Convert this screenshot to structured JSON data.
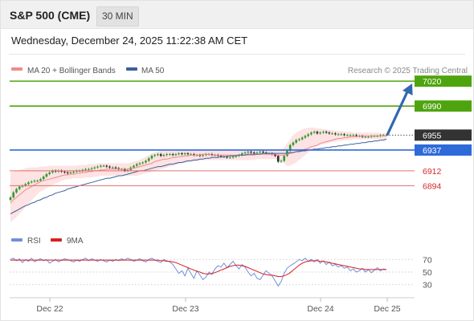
{
  "header": {
    "title": "S&P 500 (CME)",
    "interval": "30 MIN",
    "datetime": "Wednesday, December 24, 2025 11:22:38 AM CET"
  },
  "legend": {
    "ma20": "MA 20 + Bollinger Bands",
    "ma50": "MA 50",
    "copyright": "Research © 2025 Trading Central",
    "rsi": "RSI",
    "rsi_ma": "9MA"
  },
  "colors": {
    "up": "#2c9a2c",
    "down": "#2b2b2b",
    "ma20": "#f08a8a",
    "band_fill": "#fde3e3",
    "ma50": "#3b5fa0",
    "resistance": "#4ea40e",
    "support": "#e07070",
    "current": "#333333",
    "pivot": "#2f6ad9",
    "arrow": "#3168b0",
    "rsi": "#6f90dc",
    "rsi_ma": "#d81f1f",
    "grid": "#dddddd"
  },
  "chart_data": [
    {
      "type": "candlestick",
      "title": "S&P 500 (CME)",
      "interval": "30 MIN",
      "x_ticks": [
        "Dec 22",
        "Dec 23",
        "Dec 24",
        "Dec 25"
      ],
      "y_range": [
        6848,
        7024
      ],
      "levels": [
        {
          "value": 7020,
          "label": "7020",
          "kind": "resistance"
        },
        {
          "value": 6990,
          "label": "6990",
          "kind": "resistance"
        },
        {
          "value": 6955,
          "label": "6955",
          "kind": "current"
        },
        {
          "value": 6937,
          "label": "6937",
          "kind": "pivot"
        },
        {
          "value": 6912,
          "label": "6912",
          "kind": "support"
        },
        {
          "value": 6894,
          "label": "6894",
          "kind": "support"
        }
      ],
      "target_arrow": {
        "from_value": 6955,
        "to_value": 7020,
        "direction": "up"
      },
      "close": [
        6880,
        6886,
        6890,
        6893,
        6894,
        6896,
        6898,
        6899,
        6900,
        6900,
        6902,
        6905,
        6908,
        6910,
        6912,
        6911,
        6912,
        6911,
        6910,
        6909,
        6910,
        6911,
        6912,
        6912,
        6913,
        6914,
        6914,
        6915,
        6916,
        6917,
        6918,
        6918,
        6917,
        6916,
        6916,
        6915,
        6914,
        6914,
        6912,
        6913,
        6916,
        6918,
        6920,
        6921,
        6922,
        6924,
        6927,
        6930,
        6931,
        6932,
        6930,
        6931,
        6932,
        6932,
        6931,
        6932,
        6933,
        6932,
        6933,
        6932,
        6932,
        6931,
        6931,
        6930,
        6931,
        6932,
        6932,
        6931,
        6931,
        6930,
        6929,
        6929,
        6928,
        6928,
        6929,
        6930,
        6931,
        6933,
        6934,
        6935,
        6934,
        6933,
        6934,
        6935,
        6934,
        6933,
        6933,
        6932,
        6930,
        6923,
        6924,
        6930,
        6936,
        6943,
        6946,
        6949,
        6950,
        6952,
        6954,
        6956,
        6958,
        6959,
        6957,
        6958,
        6959,
        6958,
        6957,
        6957,
        6956,
        6956,
        6956,
        6955,
        6955,
        6955,
        6955,
        6954,
        6954,
        6953,
        6953,
        6953,
        6954,
        6954,
        6954,
        6955,
        6955,
        6955
      ],
      "ma20": [
        6873,
        6877,
        6880,
        6883,
        6886,
        6889,
        6891,
        6893,
        6895,
        6897,
        6899,
        6900,
        6901,
        6902,
        6903,
        6904,
        6905,
        6906,
        6907,
        6907,
        6908,
        6908,
        6909,
        6909,
        6910,
        6910,
        6911,
        6911,
        6912,
        6912,
        6913,
        6913,
        6914,
        6914,
        6914,
        6914,
        6914,
        6914,
        6914,
        6914,
        6915,
        6915,
        6916,
        6917,
        6918,
        6919,
        6920,
        6921,
        6923,
        6924,
        6925,
        6926,
        6926,
        6927,
        6928,
        6928,
        6929,
        6929,
        6930,
        6930,
        6931,
        6931,
        6931,
        6931,
        6932,
        6932,
        6932,
        6931,
        6931,
        6931,
        6931,
        6931,
        6931,
        6931,
        6931,
        6931,
        6931,
        6931,
        6931,
        6931,
        6931,
        6931,
        6932,
        6932,
        6932,
        6932,
        6932,
        6932,
        6932,
        6931,
        6931,
        6931,
        6932,
        6933,
        6934,
        6935,
        6936,
        6937,
        6938,
        6939,
        6941,
        6942,
        6943,
        6945,
        6946,
        6947,
        6948,
        6949,
        6950,
        6951,
        6951,
        6952,
        6952,
        6953,
        6953,
        6953,
        6954,
        6954,
        6954,
        6954,
        6954,
        6954,
        6954,
        6954,
        6954,
        6954
      ],
      "band_upper": [
        6910,
        6911,
        6912,
        6913,
        6914,
        6915,
        6916,
        6916,
        6916,
        6916,
        6917,
        6917,
        6917,
        6918,
        6918,
        6918,
        6918,
        6918,
        6918,
        6918,
        6918,
        6918,
        6918,
        6919,
        6919,
        6919,
        6920,
        6920,
        6920,
        6921,
        6921,
        6921,
        6921,
        6921,
        6921,
        6921,
        6921,
        6921,
        6921,
        6921,
        6922,
        6923,
        6924,
        6925,
        6927,
        6929,
        6931,
        6933,
        6934,
        6935,
        6936,
        6936,
        6936,
        6936,
        6936,
        6936,
        6937,
        6937,
        6937,
        6937,
        6937,
        6937,
        6937,
        6937,
        6937,
        6937,
        6937,
        6937,
        6937,
        6937,
        6937,
        6937,
        6937,
        6937,
        6937,
        6937,
        6937,
        6937,
        6937,
        6937,
        6937,
        6937,
        6937,
        6937,
        6937,
        6937,
        6937,
        6937,
        6937,
        6937,
        6937,
        6940,
        6945,
        6950,
        6955,
        6958,
        6960,
        6962,
        6963,
        6964,
        6964,
        6964,
        6963,
        6963,
        6962,
        6962,
        6961,
        6961,
        6960,
        6960,
        6960,
        6959,
        6959,
        6959,
        6958,
        6958,
        6958,
        6958,
        6958,
        6958,
        6958,
        6958,
        6958,
        6957,
        6957,
        6957
      ],
      "band_lower": [
        6850,
        6853,
        6856,
        6860,
        6864,
        6868,
        6872,
        6876,
        6880,
        6884,
        6887,
        6889,
        6891,
        6893,
        6895,
        6897,
        6898,
        6900,
        6901,
        6902,
        6902,
        6903,
        6903,
        6903,
        6903,
        6904,
        6904,
        6904,
        6905,
        6905,
        6906,
        6906,
        6906,
        6906,
        6906,
        6906,
        6906,
        6906,
        6906,
        6906,
        6906,
        6906,
        6906,
        6907,
        6908,
        6909,
        6910,
        6911,
        6912,
        6913,
        6914,
        6915,
        6916,
        6917,
        6918,
        6919,
        6920,
        6921,
        6922,
        6922,
        6923,
        6923,
        6924,
        6924,
        6925,
        6925,
        6925,
        6925,
        6925,
        6925,
        6925,
        6925,
        6925,
        6925,
        6925,
        6925,
        6925,
        6925,
        6925,
        6925,
        6925,
        6925,
        6926,
        6926,
        6926,
        6926,
        6926,
        6926,
        6926,
        6925,
        6924,
        6921,
        6918,
        6918,
        6920,
        6922,
        6925,
        6928,
        6931,
        6934,
        6937,
        6939,
        6941,
        6943,
        6944,
        6945,
        6946,
        6947,
        6947,
        6948,
        6948,
        6949,
        6949,
        6949,
        6950,
        6950,
        6950,
        6950,
        6950,
        6950,
        6950,
        6950,
        6950,
        6950,
        6950,
        6950
      ],
      "ma50": [
        6860,
        6862,
        6864,
        6866,
        6868,
        6870,
        6871,
        6873,
        6874,
        6876,
        6877,
        6879,
        6880,
        6882,
        6883,
        6885,
        6886,
        6887,
        6888,
        6890,
        6891,
        6892,
        6893,
        6894,
        6895,
        6896,
        6897,
        6898,
        6899,
        6900,
        6901,
        6902,
        6903,
        6903,
        6904,
        6905,
        6906,
        6906,
        6907,
        6908,
        6909,
        6910,
        6911,
        6912,
        6912,
        6913,
        6914,
        6915,
        6916,
        6917,
        6917,
        6918,
        6919,
        6920,
        6920,
        6921,
        6922,
        6922,
        6923,
        6924,
        6924,
        6925,
        6925,
        6926,
        6926,
        6927,
        6927,
        6928,
        6928,
        6928,
        6929,
        6929,
        6929,
        6930,
        6930,
        6930,
        6931,
        6931,
        6931,
        6932,
        6932,
        6932,
        6932,
        6932,
        6933,
        6933,
        6933,
        6933,
        6933,
        6933,
        6933,
        6933,
        6933,
        6934,
        6934,
        6935,
        6935,
        6936,
        6936,
        6937,
        6937,
        6938,
        6938,
        6939,
        6939,
        6940,
        6940,
        6941,
        6941,
        6942,
        6942,
        6943,
        6943,
        6944,
        6944,
        6945,
        6945,
        6946,
        6946,
        6947,
        6947,
        6948,
        6948,
        6949,
        6949,
        6950
      ]
    },
    {
      "type": "line",
      "title": "RSI",
      "y_range": [
        22,
        78
      ],
      "y_ticks": [
        70,
        50,
        30
      ],
      "series": [
        {
          "name": "RSI",
          "values": [
            70,
            72,
            68,
            71,
            65,
            70,
            67,
            72,
            66,
            69,
            71,
            68,
            70,
            64,
            67,
            70,
            66,
            69,
            71,
            70,
            68,
            66,
            69,
            67,
            70,
            72,
            68,
            71,
            69,
            67,
            70,
            68,
            66,
            69,
            67,
            70,
            68,
            71,
            69,
            72,
            70,
            67,
            69,
            71,
            68,
            66,
            70,
            72,
            69,
            67,
            65,
            70,
            68,
            66,
            62,
            55,
            48,
            52,
            44,
            56,
            48,
            40,
            52,
            45,
            38,
            42,
            50,
            46,
            55,
            60,
            58,
            64,
            57,
            62,
            67,
            60,
            55,
            62,
            58,
            50,
            44,
            48,
            40,
            38,
            45,
            52,
            48,
            44,
            36,
            28,
            35,
            48,
            56,
            60,
            63,
            66,
            70,
            68,
            72,
            67,
            70,
            66,
            70,
            64,
            68,
            62,
            66,
            60,
            62,
            58,
            60,
            56,
            58,
            52,
            55,
            50,
            52,
            56,
            50,
            54,
            49,
            53,
            57,
            52,
            55,
            54
          ]
        },
        {
          "name": "9MA",
          "values": [
            69,
            69,
            69,
            69,
            69,
            69,
            69,
            69,
            69,
            69,
            69,
            69,
            69,
            69,
            69,
            69,
            69,
            69,
            69,
            69,
            69,
            69,
            69,
            69,
            69,
            69,
            69,
            69,
            69,
            69,
            69,
            69,
            69,
            69,
            69,
            69,
            69,
            69,
            69,
            69,
            69,
            69,
            69,
            69,
            69,
            69,
            69,
            69,
            69,
            69,
            68,
            68,
            67,
            67,
            66,
            65,
            63,
            61,
            59,
            57,
            55,
            53,
            51,
            50,
            48,
            47,
            47,
            48,
            49,
            51,
            53,
            55,
            57,
            59,
            60,
            61,
            61,
            60,
            59,
            57,
            55,
            53,
            51,
            49,
            47,
            46,
            45,
            45,
            44,
            43,
            43,
            44,
            46,
            49,
            53,
            57,
            61,
            64,
            66,
            67,
            68,
            68,
            68,
            67,
            67,
            66,
            65,
            64,
            63,
            62,
            61,
            60,
            59,
            58,
            57,
            56,
            55,
            55,
            54,
            54,
            54,
            54,
            54,
            54,
            54,
            54
          ]
        }
      ]
    }
  ]
}
